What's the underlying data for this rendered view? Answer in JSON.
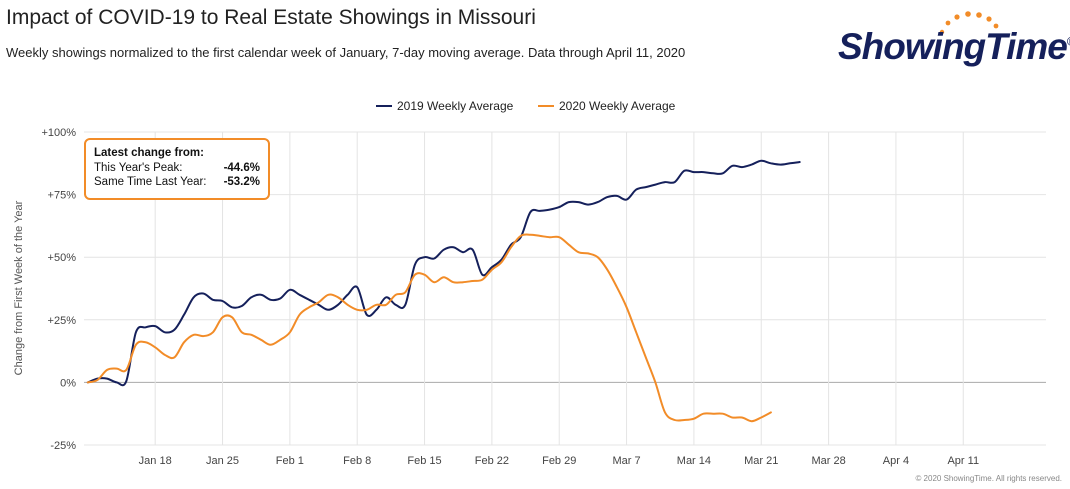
{
  "header": {
    "title": "Impact of COVID-19 to Real Estate Showings in Missouri",
    "subtitle": "Weekly showings normalized to the first calendar week of January, 7-day moving average. Data through April 11, 2020"
  },
  "logo": {
    "text": "ShowingTime",
    "reg": "®",
    "dot_color": "#f28c28",
    "text_color": "#15205b"
  },
  "info_box": {
    "heading": "Latest change from:",
    "rows": [
      {
        "label": "This Year's Peak:",
        "value": "-44.6%"
      },
      {
        "label": "Same Time Last Year:",
        "value": "-53.2%"
      }
    ]
  },
  "copyright": "© 2020 ShowingTime. All rights reserved.",
  "chart_data": {
    "type": "line",
    "ylabel": "Change from First Week of the Year",
    "ylim": [
      -25,
      100
    ],
    "xlim": [
      -0.4,
      99.6
    ],
    "yticks": [
      {
        "value": 100,
        "label": "+100%"
      },
      {
        "value": 75,
        "label": "+75%"
      },
      {
        "value": 50,
        "label": "+50%"
      },
      {
        "value": 25,
        "label": "+25%"
      },
      {
        "value": 0,
        "label": "0%"
      },
      {
        "value": -25,
        "label": "-25%"
      }
    ],
    "xticks": [
      {
        "day": 7,
        "label": "Jan 18"
      },
      {
        "day": 14,
        "label": "Jan 25"
      },
      {
        "day": 21,
        "label": "Feb 1"
      },
      {
        "day": 28,
        "label": "Feb 8"
      },
      {
        "day": 35,
        "label": "Feb 15"
      },
      {
        "day": 42,
        "label": "Feb 22"
      },
      {
        "day": 49,
        "label": "Feb 29"
      },
      {
        "day": 56,
        "label": "Mar 7"
      },
      {
        "day": 63,
        "label": "Mar 14"
      },
      {
        "day": 70,
        "label": "Mar 21"
      },
      {
        "day": 77,
        "label": "Mar 28"
      },
      {
        "day": 84,
        "label": "Apr 4"
      },
      {
        "day": 91,
        "label": "Apr 11"
      }
    ],
    "legend_position": "top-center",
    "series": [
      {
        "name": "2019 Weekly Average",
        "color": "#15205b",
        "points": [
          [
            0,
            0
          ],
          [
            1,
            1.5
          ],
          [
            2,
            1.5
          ],
          [
            3,
            0
          ],
          [
            4,
            0.5
          ],
          [
            5,
            20
          ],
          [
            6,
            22
          ],
          [
            7,
            22.5
          ],
          [
            8,
            20
          ],
          [
            9,
            21
          ],
          [
            10,
            27
          ],
          [
            11,
            34
          ],
          [
            12,
            35.5
          ],
          [
            13,
            33
          ],
          [
            14,
            32.5
          ],
          [
            15,
            30
          ],
          [
            16,
            30.5
          ],
          [
            17,
            34
          ],
          [
            18,
            35
          ],
          [
            19,
            33
          ],
          [
            20,
            33.5
          ],
          [
            21,
            37
          ],
          [
            22,
            35
          ],
          [
            23,
            33
          ],
          [
            24,
            31
          ],
          [
            25,
            29
          ],
          [
            26,
            31
          ],
          [
            27,
            35
          ],
          [
            28,
            38
          ],
          [
            29,
            27
          ],
          [
            30,
            29
          ],
          [
            31,
            34
          ],
          [
            32,
            31
          ],
          [
            33,
            31
          ],
          [
            34,
            47
          ],
          [
            35,
            50
          ],
          [
            36,
            49.5
          ],
          [
            37,
            53
          ],
          [
            38,
            54
          ],
          [
            39,
            52
          ],
          [
            40,
            53
          ],
          [
            41,
            43
          ],
          [
            42,
            46
          ],
          [
            43,
            49
          ],
          [
            44,
            55
          ],
          [
            45,
            58
          ],
          [
            46,
            68
          ],
          [
            47,
            68.5
          ],
          [
            48,
            69
          ],
          [
            49,
            70
          ],
          [
            50,
            72
          ],
          [
            51,
            72
          ],
          [
            52,
            71
          ],
          [
            53,
            72
          ],
          [
            54,
            74
          ],
          [
            55,
            74.5
          ],
          [
            56,
            73
          ],
          [
            57,
            77
          ],
          [
            58,
            78
          ],
          [
            59,
            79
          ],
          [
            60,
            80
          ],
          [
            61,
            80
          ],
          [
            62,
            84.5
          ],
          [
            63,
            84
          ],
          [
            64,
            84
          ],
          [
            65,
            83.5
          ],
          [
            66,
            83.5
          ],
          [
            67,
            86.5
          ],
          [
            68,
            86
          ],
          [
            69,
            87
          ],
          [
            70,
            88.5
          ],
          [
            71,
            87.5
          ],
          [
            72,
            87
          ],
          [
            73,
            87.5
          ],
          [
            74,
            88
          ]
        ]
      },
      {
        "name": "2020 Weekly Average",
        "color": "#f28c28",
        "points": [
          [
            0,
            0
          ],
          [
            1,
            1
          ],
          [
            2,
            5
          ],
          [
            3,
            5.5
          ],
          [
            4,
            5
          ],
          [
            5,
            15
          ],
          [
            6,
            16
          ],
          [
            7,
            14
          ],
          [
            8,
            11
          ],
          [
            9,
            10
          ],
          [
            10,
            16
          ],
          [
            11,
            19
          ],
          [
            12,
            18.5
          ],
          [
            13,
            20
          ],
          [
            14,
            26
          ],
          [
            15,
            26
          ],
          [
            16,
            20
          ],
          [
            17,
            19
          ],
          [
            18,
            17
          ],
          [
            19,
            15
          ],
          [
            20,
            17
          ],
          [
            21,
            20
          ],
          [
            22,
            27
          ],
          [
            23,
            30
          ],
          [
            24,
            32
          ],
          [
            25,
            35
          ],
          [
            26,
            34
          ],
          [
            27,
            31
          ],
          [
            28,
            29
          ],
          [
            29,
            29
          ],
          [
            30,
            31
          ],
          [
            31,
            31
          ],
          [
            32,
            35
          ],
          [
            33,
            36
          ],
          [
            34,
            43
          ],
          [
            35,
            43
          ],
          [
            36,
            40
          ],
          [
            37,
            42
          ],
          [
            38,
            40
          ],
          [
            39,
            40
          ],
          [
            40,
            40.5
          ],
          [
            41,
            41
          ],
          [
            42,
            45
          ],
          [
            43,
            48
          ],
          [
            44,
            54
          ],
          [
            45,
            58.5
          ],
          [
            46,
            59
          ],
          [
            47,
            58.5
          ],
          [
            48,
            58
          ],
          [
            49,
            58
          ],
          [
            50,
            55
          ],
          [
            51,
            52
          ],
          [
            52,
            51.5
          ],
          [
            53,
            50
          ],
          [
            54,
            45
          ],
          [
            55,
            38
          ],
          [
            56,
            30
          ],
          [
            57,
            20
          ],
          [
            58,
            10
          ],
          [
            59,
            0
          ],
          [
            60,
            -12
          ],
          [
            61,
            -15
          ],
          [
            62,
            -15
          ],
          [
            63,
            -14.5
          ],
          [
            64,
            -12.5
          ],
          [
            65,
            -12.5
          ],
          [
            66,
            -12.5
          ],
          [
            67,
            -14
          ],
          [
            68,
            -14
          ],
          [
            69,
            -15.5
          ],
          [
            70,
            -14
          ],
          [
            71,
            -12
          ]
        ]
      }
    ]
  }
}
